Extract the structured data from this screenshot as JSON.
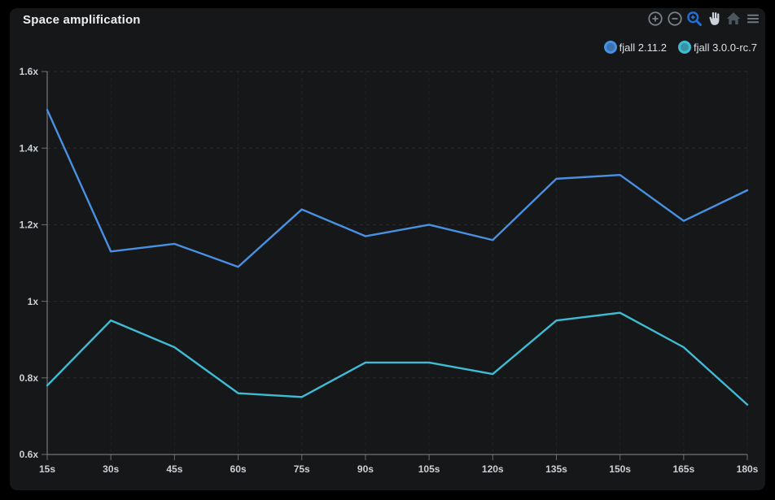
{
  "page": {
    "background": "#000000"
  },
  "card": {
    "background": "#151719"
  },
  "header": {
    "title": "Space amplification"
  },
  "toolbar": {
    "buttons": [
      {
        "label": "zoom in",
        "icon": "zoom-in-circle-icon",
        "color": "#7b828b",
        "active": false
      },
      {
        "label": "zoom out",
        "icon": "zoom-out-circle-icon",
        "color": "#7b828b",
        "active": false
      },
      {
        "label": "box zoom",
        "icon": "magnifier-zoom-icon",
        "color": "#1e71dc",
        "active": true
      },
      {
        "label": "pan",
        "icon": "hand-icon",
        "color": "#ccd2d9",
        "active": false
      },
      {
        "label": "reset view",
        "icon": "home-icon",
        "color": "#4c565f",
        "active": false
      },
      {
        "label": "menu",
        "icon": "hamburger-menu-icon",
        "color": "#6e7883",
        "active": false
      }
    ]
  },
  "legend": {
    "items": [
      {
        "label": "fjall 2.11.2",
        "color": "#4a90e2"
      },
      {
        "label": "fjall 3.0.0-rc.7",
        "color": "#3fbcd4"
      }
    ]
  },
  "chart_data": {
    "type": "line",
    "title": "Space amplification",
    "categories": [
      "15s",
      "30s",
      "45s",
      "60s",
      "75s",
      "90s",
      "105s",
      "120s",
      "135s",
      "150s",
      "165s",
      "180s"
    ],
    "series": [
      {
        "name": "fjall 2.11.2",
        "color": "#4a90e2",
        "values": [
          1.5,
          1.13,
          1.15,
          1.09,
          1.24,
          1.17,
          1.2,
          1.16,
          1.32,
          1.33,
          1.21,
          1.29
        ]
      },
      {
        "name": "fjall 3.0.0-rc.7",
        "color": "#3fbcd4",
        "values": [
          0.78,
          0.95,
          0.88,
          0.76,
          0.75,
          0.84,
          0.84,
          0.81,
          0.95,
          0.97,
          0.88,
          0.73
        ]
      }
    ],
    "ylim": [
      0.6,
      1.6
    ],
    "ytick_labels": [
      "0.6x",
      "0.8x",
      "1x",
      "1.2x",
      "1.4x",
      "1.6x"
    ],
    "xlabel": "",
    "ylabel": "",
    "grid": "dashed",
    "legend_position": "top-right",
    "style": {
      "axis_color": "#888c91",
      "tick_color": "#6a6e73",
      "label_color": "#cdd0d4",
      "grid_color": "rgba(255,255,255,0.09)",
      "grid_color_v": "rgba(255,255,255,0.05)"
    }
  }
}
